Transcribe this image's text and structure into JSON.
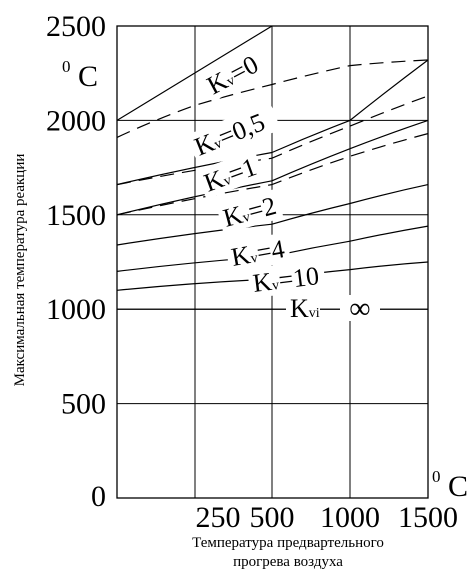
{
  "chart_data": {
    "type": "line",
    "ylabel": "Максимальная температура реакции",
    "xlabel_line1": "Температура предвартельного",
    "xlabel_line2": "прогрева воздуха",
    "x_unit_sup": "0",
    "x_unit": "C",
    "y_unit_sup": "0",
    "y_unit": "C",
    "x_ticks": [
      "250",
      "500",
      "1000",
      "1500"
    ],
    "x_tick_values": [
      250,
      500,
      1000,
      1500
    ],
    "x_zero": "0",
    "y_ticks": [
      "500",
      "1000",
      "1500",
      "2000",
      "2500"
    ],
    "y_tick_values": [
      500,
      1000,
      1500,
      2000,
      2500
    ],
    "ylim": [
      0,
      2500
    ],
    "grid": true,
    "series": [
      {
        "name": "Kv=0",
        "style": "solid",
        "x": [
          0,
          500
        ],
        "y": [
          2000,
          2500
        ]
      },
      {
        "name": "Kv=0",
        "style": "dashed",
        "x": [
          0,
          250,
          500,
          1000,
          1500
        ],
        "y": [
          1910,
          2080,
          2190,
          2290,
          2320
        ]
      },
      {
        "name": "Kv=0,5",
        "style": "solid",
        "x": [
          0,
          500,
          1000,
          1500
        ],
        "y": [
          1660,
          1830,
          2000,
          2320
        ]
      },
      {
        "name": "Kv=0,5",
        "style": "dashed",
        "x": [
          0,
          500,
          1000,
          1500
        ],
        "y": [
          1660,
          1800,
          1970,
          2130
        ]
      },
      {
        "name": "Kv=1",
        "style": "solid",
        "x": [
          0,
          500,
          1000,
          1500
        ],
        "y": [
          1500,
          1680,
          1850,
          2000
        ]
      },
      {
        "name": "Kv=1",
        "style": "dashed",
        "x": [
          0,
          500,
          1000,
          1500
        ],
        "y": [
          1500,
          1660,
          1810,
          1930
        ]
      },
      {
        "name": "Kv=2",
        "style": "solid",
        "x": [
          0,
          500,
          1000,
          1500
        ],
        "y": [
          1340,
          1450,
          1560,
          1660
        ]
      },
      {
        "name": "Kv=4",
        "style": "solid",
        "x": [
          0,
          500,
          1000,
          1500
        ],
        "y": [
          1200,
          1280,
          1360,
          1440
        ]
      },
      {
        "name": "Kv=10",
        "style": "solid",
        "x": [
          0,
          500,
          1000,
          1500
        ],
        "y": [
          1100,
          1160,
          1210,
          1250
        ]
      },
      {
        "name": "Kv=∞",
        "style": "solid",
        "x": [
          0,
          1500
        ],
        "y": [
          1000,
          1000
        ]
      }
    ],
    "labels": [
      {
        "main": "K",
        "sub": "v",
        "rest": "=0"
      },
      {
        "main": "K",
        "sub": "v",
        "rest": "=0,5"
      },
      {
        "main": "K",
        "sub": "v",
        "rest": "=1"
      },
      {
        "main": "K",
        "sub": "v",
        "rest": "=2"
      },
      {
        "main": "K",
        "sub": "v",
        "rest": "=4"
      },
      {
        "main": "K",
        "sub": "v",
        "rest": "=10"
      },
      {
        "main": "K",
        "sub": "vi",
        "rest": "",
        "symbol": "∞"
      }
    ]
  }
}
